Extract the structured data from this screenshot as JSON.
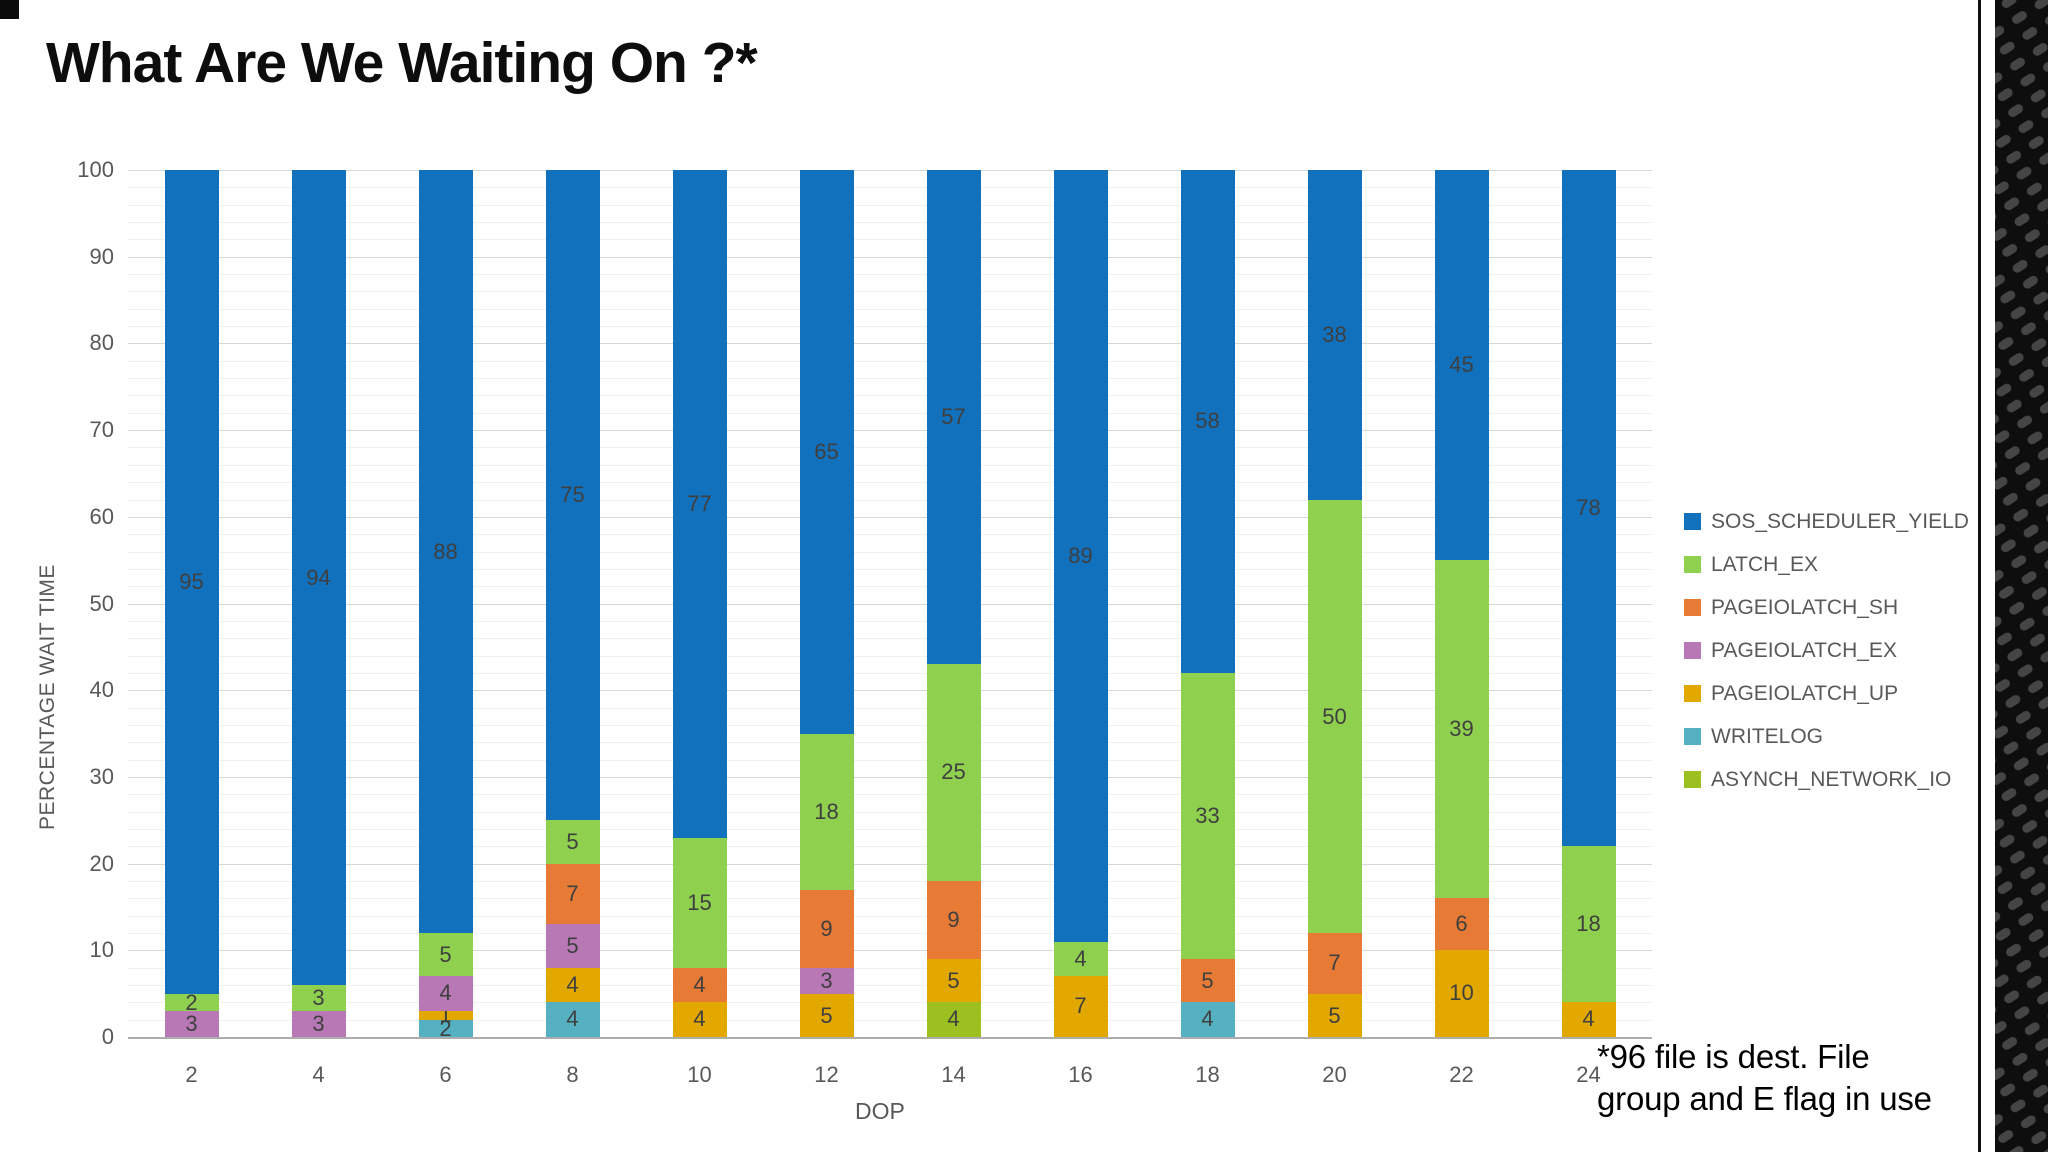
{
  "slide": {
    "title": "What Are We Waiting On ?*",
    "footnote_line1": "*96 file is dest. File",
    "footnote_line2": "group and E flag in use"
  },
  "chart_data": {
    "type": "bar",
    "stacked": true,
    "percent_stacked": true,
    "title": "",
    "xlabel": "DOP",
    "ylabel": "PERCENTAGE WAIT TIME",
    "ylim": [
      0,
      100
    ],
    "ytick_step": 10,
    "ytick_minor_step": 2,
    "grid": "horizontal",
    "legend_position": "right",
    "stack_order": "reverse_of_legend (first legend series on top)",
    "categories": [
      "2",
      "4",
      "6",
      "8",
      "10",
      "12",
      "14",
      "16",
      "18",
      "20",
      "22",
      "24"
    ],
    "series": [
      {
        "name": "SOS_SCHEDULER_YIELD",
        "color": "#1171BD",
        "values": [
          95,
          94,
          88,
          75,
          77,
          65,
          57,
          89,
          58,
          38,
          45,
          78
        ]
      },
      {
        "name": "LATCH_EX",
        "color": "#8FD14F",
        "values": [
          2,
          3,
          5,
          5,
          15,
          18,
          25,
          4,
          33,
          50,
          39,
          18
        ]
      },
      {
        "name": "PAGEIOLATCH_SH",
        "color": "#E77B35",
        "values": [
          0,
          0,
          0,
          7,
          4,
          9,
          9,
          0,
          5,
          7,
          6,
          0
        ]
      },
      {
        "name": "PAGEIOLATCH_EX",
        "color": "#B877B5",
        "values": [
          3,
          3,
          4,
          5,
          0,
          3,
          0,
          0,
          0,
          0,
          0,
          0
        ]
      },
      {
        "name": "PAGEIOLATCH_UP",
        "color": "#E2A800",
        "values": [
          0,
          0,
          1,
          4,
          4,
          5,
          5,
          7,
          0,
          5,
          10,
          4
        ]
      },
      {
        "name": "WRITELOG",
        "color": "#55B0C2",
        "values": [
          0,
          0,
          2,
          4,
          0,
          0,
          0,
          0,
          4,
          0,
          0,
          0
        ]
      },
      {
        "name": "ASYNCH_NETWORK_IO",
        "color": "#9CC01F",
        "values": [
          0,
          0,
          0,
          0,
          0,
          0,
          4,
          0,
          0,
          0,
          0,
          0
        ]
      }
    ],
    "label_color": "#3F3F3F",
    "gridline_major_color": "#D8D8D8",
    "gridline_minor_color": "#F1F1F1"
  }
}
